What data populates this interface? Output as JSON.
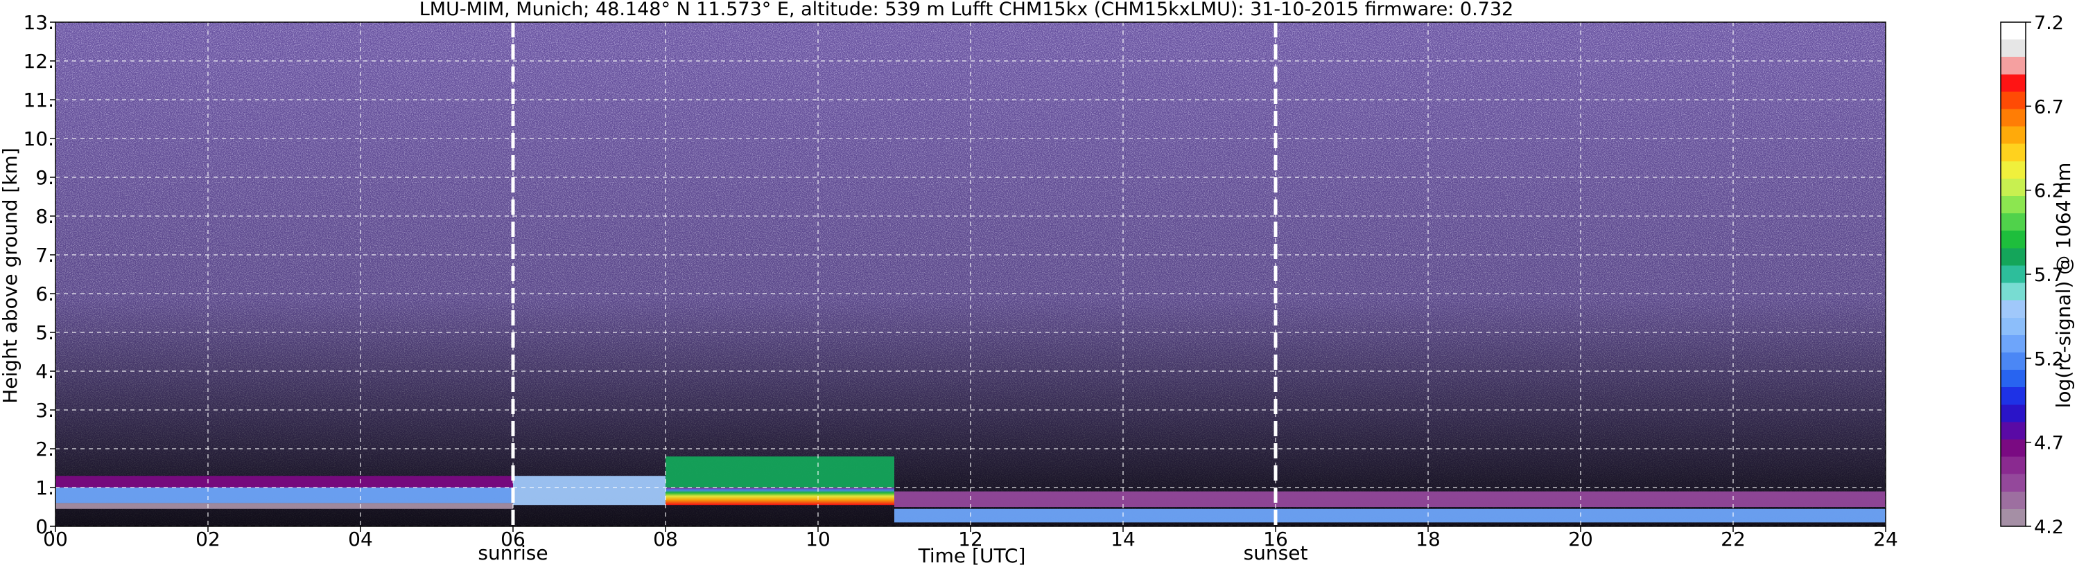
{
  "chart_data": {
    "type": "heatmap",
    "title": "LMU-MIM, Munich; 48.148° N 11.573° E, altitude: 539 m    Lufft CHM15kx (CHM15kxLMU): 31-10-2015    firmware: 0.732",
    "xlabel": "Time [UTC]",
    "ylabel": "Height above ground [km]",
    "xlim": [
      0,
      24
    ],
    "ylim": [
      0,
      13
    ],
    "x_ticks": [
      "00",
      "02",
      "04",
      "06",
      "08",
      "10",
      "12",
      "14",
      "16",
      "18",
      "20",
      "22",
      "24"
    ],
    "y_ticks": [
      "0.",
      "1.",
      "2.",
      "3.",
      "4.",
      "5.",
      "6.",
      "7.",
      "8.",
      "9.",
      "10.",
      "11.",
      "12.",
      "13."
    ],
    "grid": true,
    "colorbar": {
      "label": "log(rc-signal) @ 1064 nm",
      "range": [
        4.2,
        7.2
      ],
      "ticks": [
        "4.2",
        "4.7",
        "5.2",
        "5.7",
        "6.2",
        "6.7",
        "7.2"
      ],
      "colors": [
        "#a58fa5",
        "#9d6fa0",
        "#94489b",
        "#8a2a90",
        "#7a0a82",
        "#5a0aa5",
        "#2a14c8",
        "#1e32e6",
        "#2864f0",
        "#4b87f5",
        "#6ea5fa",
        "#8cbefa",
        "#a0c8fa",
        "#78dcd2",
        "#2dbe9b",
        "#14a55a",
        "#1ebe3c",
        "#50d24b",
        "#8ce650",
        "#c8f050",
        "#f0f03c",
        "#ffd21e",
        "#ffaa0a",
        "#ff7d05",
        "#ff4b05",
        "#ff1414",
        "#f5a0a0",
        "#e6e6e6",
        "#ffffff"
      ]
    },
    "markers": [
      {
        "time": 6,
        "label": "sunrise"
      },
      {
        "time": 16,
        "label": "sunset"
      }
    ],
    "layers": [
      {
        "t0": 0,
        "t1": 6,
        "z0": 0.45,
        "z1": 0.6,
        "value": 4.2
      },
      {
        "t0": 0,
        "t1": 6,
        "z0": 0.6,
        "z1": 1.0,
        "value": 5.3
      },
      {
        "t0": 0,
        "t1": 6,
        "z0": 1.0,
        "z1": 1.3,
        "value": 4.7
      },
      {
        "t0": 6,
        "t1": 8,
        "z0": 0.55,
        "z1": 1.3,
        "value": 5.5
      },
      {
        "t0": 8,
        "t1": 11,
        "z0": 0.55,
        "z1": 1.0,
        "value": 6.3
      },
      {
        "t0": 8,
        "t1": 11,
        "z0": 1.0,
        "z1": 1.8,
        "value": 5.8
      },
      {
        "t0": 11,
        "t1": 24,
        "z0": 0.5,
        "z1": 0.9,
        "value": 4.5
      },
      {
        "t0": 11,
        "t1": 24,
        "z0": 0.1,
        "z1": 0.45,
        "value": 5.3
      }
    ]
  }
}
